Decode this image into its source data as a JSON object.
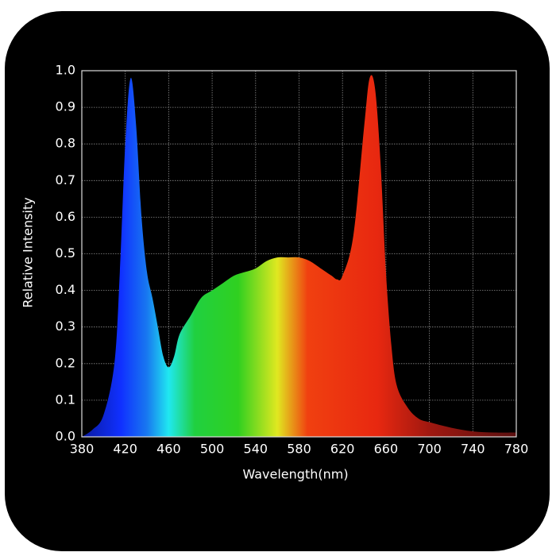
{
  "chart_data": {
    "type": "area",
    "x_label": "Wavelength(nm)",
    "y_label": "Relative Intensity",
    "x": [
      380,
      390,
      400,
      410,
      415,
      420,
      425,
      430,
      435,
      440,
      445,
      450,
      455,
      460,
      465,
      470,
      480,
      490,
      500,
      510,
      520,
      530,
      540,
      550,
      560,
      570,
      580,
      590,
      600,
      610,
      615,
      620,
      630,
      640,
      645,
      650,
      655,
      660,
      665,
      670,
      680,
      690,
      700,
      720,
      740,
      760,
      780
    ],
    "values": [
      0.0,
      0.02,
      0.06,
      0.2,
      0.45,
      0.8,
      0.98,
      0.85,
      0.6,
      0.45,
      0.38,
      0.3,
      0.22,
      0.19,
      0.22,
      0.28,
      0.33,
      0.38,
      0.4,
      0.42,
      0.44,
      0.45,
      0.46,
      0.48,
      0.49,
      0.49,
      0.49,
      0.48,
      0.46,
      0.44,
      0.43,
      0.44,
      0.55,
      0.85,
      0.98,
      0.95,
      0.75,
      0.45,
      0.25,
      0.14,
      0.08,
      0.05,
      0.04,
      0.025,
      0.015,
      0.012,
      0.012
    ],
    "xlim": [
      380,
      780
    ],
    "xticks": [
      380,
      420,
      460,
      500,
      540,
      580,
      620,
      660,
      700,
      740,
      780
    ],
    "ylim": [
      0,
      1
    ],
    "yticks": [
      {
        "value": 0,
        "label": "0.0"
      },
      0.1,
      0.2,
      0.3,
      0.4,
      0.5,
      0.6,
      0.7,
      0.8,
      0.9,
      {
        "value": 1,
        "label": "1.0"
      }
    ],
    "grid": true
  }
}
